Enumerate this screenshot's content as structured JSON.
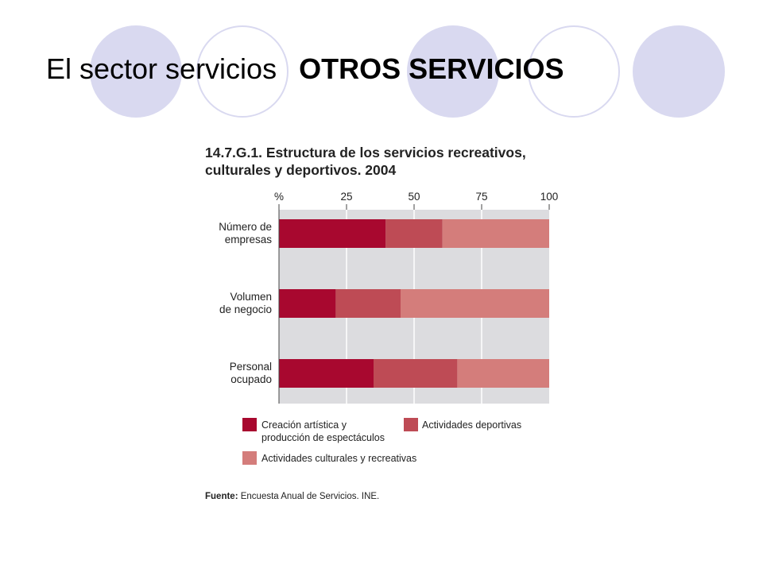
{
  "slide": {
    "title": "El sector servicios",
    "subtitle": "OTROS SERVICIOS"
  },
  "colors": {
    "background_circle": "#d9d9f0",
    "series": [
      "#a8082f",
      "#be4b55",
      "#d47d7b"
    ],
    "plot_background": "#dcdcdf"
  },
  "chart_data": {
    "type": "bar",
    "orientation": "horizontal",
    "stacked": true,
    "title": "14.7.G.1. Estructura de los servicios recreativos, culturales y deportivos. 2004",
    "title_lines": [
      "14.7.G.1. Estructura de los servicios recreativos,",
      "culturales y deportivos. 2004"
    ],
    "axis_unit_label": "%",
    "xlim": [
      0,
      100
    ],
    "xticks": [
      25,
      50,
      75,
      100
    ],
    "grid": true,
    "categories": [
      "Número de empresas",
      "Volumen de negocio",
      "Personal ocupado"
    ],
    "category_lines": [
      [
        "Número de",
        "empresas"
      ],
      [
        "Volumen",
        "de negocio"
      ],
      [
        "Personal",
        "ocupado"
      ]
    ],
    "series": [
      {
        "name": "Creación artística y producción de espectáculos",
        "values": [
          39.5,
          21,
          35
        ]
      },
      {
        "name": "Actividades deportivas",
        "values": [
          21,
          24,
          31
        ]
      },
      {
        "name": "Actividades culturales y recreativas",
        "values": [
          39.5,
          55,
          34
        ]
      }
    ],
    "legend": {
      "placement": "bottom",
      "lines": [
        [
          "Creación artística y",
          "producción de espectáculos"
        ],
        [
          "Actividades deportivas"
        ],
        [
          "Actividades culturales y recreativas"
        ]
      ]
    },
    "source": {
      "label": "Fuente:",
      "text": "Encuesta Anual de Servicios. INE."
    }
  }
}
